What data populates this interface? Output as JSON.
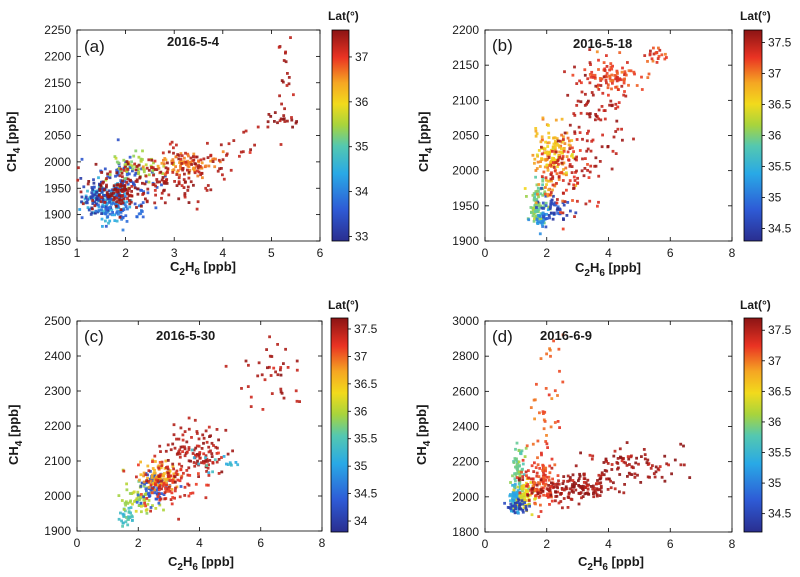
{
  "chart_data": [
    {
      "type": "scatter",
      "panel_label": "(a)",
      "title": "2016-5-4",
      "xlabel": "C2H6 [ppb]",
      "ylabel": "CH4 [ppb]",
      "xlim": [
        1,
        6
      ],
      "ylim": [
        1850,
        2250
      ],
      "xticks": [
        "1",
        "2",
        "3",
        "4",
        "5",
        "6"
      ],
      "yticks": [
        "1850",
        "1900",
        "1950",
        "2000",
        "2050",
        "2100",
        "2150",
        "2200",
        "2250"
      ],
      "colorbar": {
        "title": "Lat(°)",
        "range": [
          32.9,
          37.6
        ],
        "ticks": [
          "33",
          "34",
          "35",
          "36",
          "37"
        ]
      },
      "clusters": [
        {
          "x": 1.6,
          "y": 1925,
          "sx": 0.25,
          "sy": 18,
          "lat": 34.5,
          "n": 120
        },
        {
          "x": 1.5,
          "y": 1935,
          "sx": 0.2,
          "sy": 15,
          "lat": 33.2,
          "n": 80
        },
        {
          "x": 2.0,
          "y": 1960,
          "sx": 0.35,
          "sy": 25,
          "lat": 33.5,
          "n": 70
        },
        {
          "x": 1.9,
          "y": 1905,
          "sx": 0.3,
          "sy": 12,
          "lat": 33.8,
          "n": 50
        },
        {
          "x": 2.2,
          "y": 1985,
          "sx": 0.25,
          "sy": 15,
          "lat": 35.5,
          "n": 60
        },
        {
          "x": 3.2,
          "y": 1995,
          "sx": 0.4,
          "sy": 12,
          "lat": 36.6,
          "n": 80
        },
        {
          "x": 2.6,
          "y": 1965,
          "sx": 0.6,
          "sy": 22,
          "lat": 37.4,
          "n": 120
        },
        {
          "x": 1.8,
          "y": 1940,
          "sx": 0.3,
          "sy": 15,
          "lat": 37.5,
          "n": 90
        },
        {
          "x": 3.3,
          "y": 2005,
          "sx": 0.5,
          "sy": 18,
          "lat": 37.3,
          "n": 50
        },
        {
          "x": 5.25,
          "y": 2080,
          "sx": 0.15,
          "sy": 8,
          "lat": 37.5,
          "n": 20
        },
        {
          "x": 5.3,
          "y": 2165,
          "sx": 0.08,
          "sy": 45,
          "lat": 37.4,
          "n": 18
        },
        {
          "x": 4.4,
          "y": 2040,
          "sx": 0.3,
          "sy": 20,
          "lat": 37.3,
          "n": 10
        }
      ]
    },
    {
      "type": "scatter",
      "panel_label": "(b)",
      "title": "2016-5-18",
      "xlabel": "C2H6 [ppb]",
      "ylabel": "CH4 [ppb]",
      "xlim": [
        0,
        8
      ],
      "ylim": [
        1900,
        2200
      ],
      "xticks": [
        "0",
        "2",
        "4",
        "6",
        "8"
      ],
      "yticks": [
        "1900",
        "1950",
        "2000",
        "2050",
        "2100",
        "2150",
        "2200"
      ],
      "colorbar": {
        "title": "Lat(°)",
        "range": [
          34.3,
          37.7
        ],
        "ticks": [
          "34.5",
          "35",
          "35.5",
          "36",
          "36.5",
          "37",
          "37.5"
        ]
      },
      "clusters": [
        {
          "x": 1.7,
          "y": 1950,
          "sx": 0.15,
          "sy": 15,
          "lat": 36.0,
          "n": 80
        },
        {
          "x": 1.8,
          "y": 1930,
          "sx": 0.15,
          "sy": 8,
          "lat": 35.2,
          "n": 30
        },
        {
          "x": 2.2,
          "y": 1945,
          "sx": 0.25,
          "sy": 12,
          "lat": 34.6,
          "n": 50
        },
        {
          "x": 2.1,
          "y": 2010,
          "sx": 0.3,
          "sy": 30,
          "lat": 36.9,
          "n": 100
        },
        {
          "x": 2.3,
          "y": 2025,
          "sx": 0.25,
          "sy": 15,
          "lat": 36.6,
          "n": 60
        },
        {
          "x": 2.7,
          "y": 2000,
          "sx": 0.5,
          "sy": 25,
          "lat": 37.4,
          "n": 90
        },
        {
          "x": 4.2,
          "y": 2135,
          "sx": 0.5,
          "sy": 12,
          "lat": 37.2,
          "n": 90
        },
        {
          "x": 3.5,
          "y": 2080,
          "sx": 0.6,
          "sy": 35,
          "lat": 37.5,
          "n": 90
        },
        {
          "x": 5.5,
          "y": 2165,
          "sx": 0.2,
          "sy": 10,
          "lat": 37.3,
          "n": 20
        }
      ]
    },
    {
      "type": "scatter",
      "panel_label": "(c)",
      "title": "2016-5-30",
      "xlabel": "C2H6 [ppb]",
      "ylabel": "CH4 [ppb]",
      "xlim": [
        0,
        8
      ],
      "ylim": [
        1900,
        2500
      ],
      "xticks": [
        "0",
        "2",
        "4",
        "6",
        "8"
      ],
      "yticks": [
        "1900",
        "2000",
        "2100",
        "2200",
        "2300",
        "2400",
        "2500"
      ],
      "colorbar": {
        "title": "Lat(°)",
        "range": [
          33.8,
          37.7
        ],
        "ticks": [
          "34",
          "34.5",
          "35",
          "35.5",
          "36",
          "36.5",
          "37",
          "37.5"
        ]
      },
      "clusters": [
        {
          "x": 1.6,
          "y": 1940,
          "sx": 0.1,
          "sy": 15,
          "lat": 35.4,
          "n": 30
        },
        {
          "x": 2.0,
          "y": 1985,
          "sx": 0.25,
          "sy": 25,
          "lat": 36.0,
          "n": 60
        },
        {
          "x": 2.5,
          "y": 2025,
          "sx": 0.25,
          "sy": 25,
          "lat": 34.3,
          "n": 80
        },
        {
          "x": 2.7,
          "y": 2055,
          "sx": 0.3,
          "sy": 20,
          "lat": 36.7,
          "n": 80
        },
        {
          "x": 3.0,
          "y": 2040,
          "sx": 0.5,
          "sy": 35,
          "lat": 37.3,
          "n": 100
        },
        {
          "x": 3.9,
          "y": 2120,
          "sx": 0.5,
          "sy": 40,
          "lat": 37.5,
          "n": 120
        },
        {
          "x": 6.5,
          "y": 2350,
          "sx": 0.6,
          "sy": 40,
          "lat": 37.5,
          "n": 40
        },
        {
          "x": 4.3,
          "y": 2100,
          "sx": 0.4,
          "sy": 20,
          "lat": 35.3,
          "n": 10
        },
        {
          "x": 5.1,
          "y": 2090,
          "sx": 0.15,
          "sy": 4,
          "lat": 35.2,
          "n": 6
        }
      ]
    },
    {
      "type": "scatter",
      "panel_label": "(d)",
      "title": "2016-6-9",
      "xlabel": "C2H6 [ppb]",
      "ylabel": "CH4 [ppb]",
      "xlim": [
        0,
        8
      ],
      "ylim": [
        1800,
        3000
      ],
      "xticks": [
        "0",
        "2",
        "4",
        "6",
        "8"
      ],
      "yticks": [
        "1800",
        "2000",
        "2200",
        "2400",
        "2600",
        "2800",
        "3000"
      ],
      "colorbar": {
        "title": "Lat(°)",
        "range": [
          34.2,
          37.7
        ],
        "ticks": [
          "34.5",
          "35",
          "35.5",
          "36",
          "36.5",
          "37",
          "37.5"
        ]
      },
      "clusters": [
        {
          "x": 1.0,
          "y": 1980,
          "sx": 0.1,
          "sy": 40,
          "lat": 35.3,
          "n": 80
        },
        {
          "x": 1.1,
          "y": 2150,
          "sx": 0.1,
          "sy": 60,
          "lat": 35.9,
          "n": 60
        },
        {
          "x": 1.3,
          "y": 2010,
          "sx": 0.15,
          "sy": 40,
          "lat": 36.4,
          "n": 60
        },
        {
          "x": 1.8,
          "y": 2080,
          "sx": 0.25,
          "sy": 80,
          "lat": 37.2,
          "n": 120
        },
        {
          "x": 2.8,
          "y": 2050,
          "sx": 0.7,
          "sy": 40,
          "lat": 37.6,
          "n": 150
        },
        {
          "x": 4.8,
          "y": 2180,
          "sx": 0.8,
          "sy": 50,
          "lat": 37.6,
          "n": 90
        },
        {
          "x": 2.0,
          "y": 2550,
          "sx": 0.3,
          "sy": 200,
          "lat": 37.1,
          "n": 40
        },
        {
          "x": 1.1,
          "y": 1950,
          "sx": 0.2,
          "sy": 15,
          "lat": 34.4,
          "n": 30
        }
      ]
    }
  ]
}
